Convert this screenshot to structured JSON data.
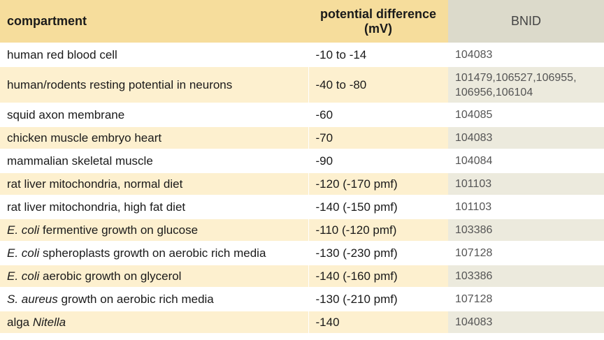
{
  "header": {
    "compartment": "compartment",
    "potential_line1": "potential difference",
    "potential_line2": "(mV)",
    "bnid": "BNID"
  },
  "rows": [
    {
      "organism": "",
      "text": "human red blood cell",
      "potential": "-10 to -14",
      "bnid": "104083"
    },
    {
      "organism": "",
      "text": "human/rodents resting potential in neurons",
      "potential": "-40 to -80",
      "bnid_line1": "101479,106527,106955,",
      "bnid_line2": "106956,106104"
    },
    {
      "organism": "",
      "text": "squid axon membrane",
      "potential": "-60",
      "bnid": "104085"
    },
    {
      "organism": "",
      "text": "chicken muscle embryo heart",
      "potential": "-70",
      "bnid": "104083"
    },
    {
      "organism": "",
      "text": "mammalian skeletal muscle",
      "potential": "-90",
      "bnid": "104084"
    },
    {
      "organism": "",
      "text": "rat liver mitochondria, normal diet",
      "potential": "-120 (-170 pmf)",
      "bnid": "101103"
    },
    {
      "organism": "",
      "text": "rat liver mitochondria, high fat diet",
      "potential": "-140 (-150 pmf)",
      "bnid": "101103"
    },
    {
      "organism": "E. coli",
      "text": " fermentive growth on glucose",
      "potential": "-110 (-120 pmf)",
      "bnid": "103386"
    },
    {
      "organism": "E. coli",
      "text": " spheroplasts growth on aerobic rich media",
      "potential": "-130 (-230 pmf)",
      "bnid": "107128"
    },
    {
      "organism": "E. coli",
      "text": " aerobic growth on glycerol",
      "potential": "-140 (-160 pmf)",
      "bnid": "103386"
    },
    {
      "organism": "S. aureus",
      "text": " growth on aerobic rich media",
      "potential": "-130 (-210 pmf)",
      "bnid": "107128"
    },
    {
      "prefix": "alga ",
      "organism": "Nitella",
      "text": "",
      "potential": "-140",
      "bnid": "104083"
    }
  ]
}
